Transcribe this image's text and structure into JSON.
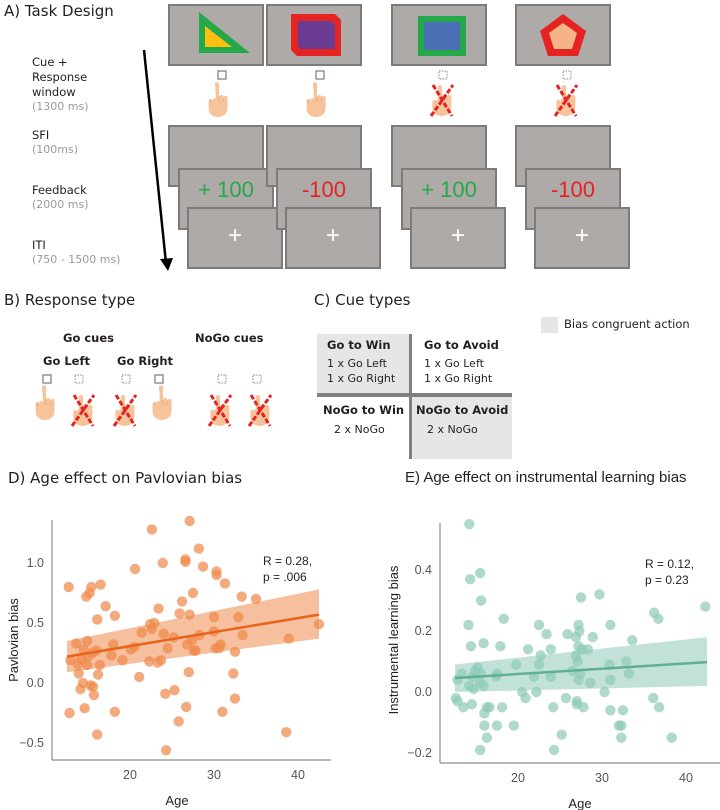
{
  "panelA": {
    "title": "A) Task Design",
    "stages": [
      {
        "label": "Cue +\nResponse\nwindow",
        "duration": "(1300 ms)"
      },
      {
        "label": "SFI",
        "duration": "(100ms)"
      },
      {
        "label": "Feedback",
        "duration": "(2000 ms)"
      },
      {
        "label": "ITI",
        "duration": "(750 - 1500 ms)"
      }
    ],
    "trials": [
      {
        "cue_shape": "triangle",
        "outer_color": "#25a84a",
        "inner_color": "#fdc010",
        "response": "go",
        "feedback": "+ 100",
        "feedback_color": "#27a84a",
        "fixation": "+"
      },
      {
        "cue_shape": "octagon",
        "outer_color": "#e52322",
        "inner_color": "#6a3c91",
        "response": "go",
        "feedback": "-100",
        "feedback_color": "#e52322",
        "fixation": "+"
      },
      {
        "cue_shape": "square",
        "outer_color": "#25a84a",
        "inner_color": "#4a6fb5",
        "response": "nogo",
        "feedback": "+ 100",
        "feedback_color": "#27a84a",
        "fixation": "+"
      },
      {
        "cue_shape": "pentagon",
        "outer_color": "#e52322",
        "inner_color": "#f5b486",
        "response": "nogo",
        "feedback": "-100",
        "feedback_color": "#e52322",
        "fixation": "+"
      }
    ]
  },
  "panelB": {
    "title": "B) Response type",
    "go_heading": "Go cues",
    "nogo_heading": "NoGo cues",
    "go_left": "Go Left",
    "go_right": "Go Right"
  },
  "panelC": {
    "title": "C)  Cue types",
    "legend": "Bias congruent action",
    "legend_color": "#e6e6e6",
    "cells": [
      {
        "heading": "Go to Win",
        "lines": [
          "1 x Go Left",
          "1 x Go Right"
        ],
        "congruent": true
      },
      {
        "heading": "Go to Avoid",
        "lines": [
          "1 x Go Left",
          "1 x Go Right"
        ],
        "congruent": false
      },
      {
        "heading": "NoGo to Win",
        "lines": [
          "2 x NoGo"
        ],
        "congruent": false
      },
      {
        "heading": "NoGo to Avoid",
        "lines": [
          "2 x NoGo"
        ],
        "congruent": true
      }
    ]
  },
  "chart_data": [
    {
      "id": "D",
      "type": "scatter",
      "title": "D)  Age effect on Pavlovian bias",
      "xlabel": "Age",
      "ylabel": "Pavlovian bias",
      "xlim": [
        11,
        44
      ],
      "ylim": [
        -0.65,
        1.45
      ],
      "xticks": [
        20,
        30,
        40
      ],
      "yticks": [
        -0.5,
        0.0,
        0.5,
        1.0
      ],
      "ytick_labels": [
        "−0.5",
        "0.0",
        "0.5",
        "1.0"
      ],
      "annotation": [
        "R = 0.28,",
        "p = .006"
      ],
      "color": "#ef8a4c",
      "line_color": "#e8631c",
      "fit": {
        "x": [
          12.5,
          42.5
        ],
        "y": [
          0.22,
          0.57
        ]
      },
      "ci": {
        "x": [
          12.5,
          42.5
        ],
        "lower": [
          0.09,
          0.37
        ],
        "upper": [
          0.35,
          0.78
        ]
      },
      "grid": false,
      "points": [
        [
          12.7,
          0.8
        ],
        [
          14.8,
          0.72
        ],
        [
          15.2,
          0.75
        ],
        [
          15.4,
          0.8
        ],
        [
          16.5,
          0.82
        ],
        [
          17.1,
          0.64
        ],
        [
          16.1,
          0.53
        ],
        [
          18.2,
          0.56
        ],
        [
          20.6,
          0.95
        ],
        [
          22.6,
          1.28
        ],
        [
          23.9,
          1.0
        ],
        [
          27.1,
          1.35
        ],
        [
          26.6,
          1.03
        ],
        [
          26.6,
          1.01
        ],
        [
          28.2,
          1.12
        ],
        [
          28.7,
          0.97
        ],
        [
          30.3,
          0.93
        ],
        [
          30.3,
          0.9
        ],
        [
          31.3,
          0.83
        ],
        [
          26.2,
          0.68
        ],
        [
          27.5,
          0.75
        ],
        [
          23.4,
          0.62
        ],
        [
          22.4,
          0.49
        ],
        [
          22.9,
          0.5
        ],
        [
          25.9,
          0.58
        ],
        [
          27.1,
          0.57
        ],
        [
          30.0,
          0.55
        ],
        [
          33.3,
          0.72
        ],
        [
          35.0,
          0.7
        ],
        [
          32.9,
          0.55
        ],
        [
          42.5,
          0.49
        ],
        [
          13.6,
          0.33
        ],
        [
          14.9,
          0.35
        ],
        [
          14.5,
          0.28
        ],
        [
          15.5,
          0.25
        ],
        [
          15.0,
          0.22
        ],
        [
          16.0,
          0.27
        ],
        [
          14.2,
          0.2
        ],
        [
          12.9,
          0.19
        ],
        [
          13.8,
          0.16
        ],
        [
          14.9,
          0.15
        ],
        [
          16.4,
          0.15
        ],
        [
          16.2,
          0.07
        ],
        [
          13.9,
          0.08
        ],
        [
          18.0,
          0.32
        ],
        [
          17.8,
          0.23
        ],
        [
          19.1,
          0.19
        ],
        [
          20.1,
          0.28
        ],
        [
          20.5,
          0.3
        ],
        [
          21.4,
          0.42
        ],
        [
          22.6,
          0.45
        ],
        [
          24.0,
          0.41
        ],
        [
          24.5,
          0.29
        ],
        [
          25.2,
          0.38
        ],
        [
          22.3,
          0.18
        ],
        [
          23.3,
          0.17
        ],
        [
          23.7,
          0.19
        ],
        [
          26.8,
          0.32
        ],
        [
          27.4,
          0.36
        ],
        [
          27.8,
          0.27
        ],
        [
          28.3,
          0.4
        ],
        [
          30.0,
          0.43
        ],
        [
          30.8,
          0.32
        ],
        [
          30.6,
          0.29
        ],
        [
          30.2,
          0.29
        ],
        [
          32.5,
          0.26
        ],
        [
          33.4,
          0.4
        ],
        [
          38.9,
          0.37
        ],
        [
          27.6,
          0.27
        ],
        [
          14.4,
          0.0
        ],
        [
          14.1,
          -0.05
        ],
        [
          15.3,
          -0.02
        ],
        [
          15.6,
          -0.03
        ],
        [
          15.7,
          -0.1
        ],
        [
          21.1,
          0.05
        ],
        [
          27.0,
          0.09
        ],
        [
          32.3,
          0.08
        ],
        [
          12.8,
          -0.25
        ],
        [
          14.6,
          -0.21
        ],
        [
          18.2,
          -0.24
        ],
        [
          16.1,
          -0.43
        ],
        [
          24.2,
          -0.09
        ],
        [
          25.3,
          -0.06
        ],
        [
          26.7,
          -0.2
        ],
        [
          25.8,
          -0.32
        ],
        [
          31.0,
          -0.24
        ],
        [
          32.5,
          -0.13
        ],
        [
          24.3,
          -0.56
        ],
        [
          38.6,
          -0.41
        ]
      ]
    },
    {
      "id": "E",
      "type": "scatter",
      "title": "E)  Age effect on instrumental learning bias",
      "xlabel": "Age",
      "ylabel": "Instrumental learning bias",
      "xlim": [
        11,
        44
      ],
      "ylim": [
        -0.24,
        0.58
      ],
      "xticks": [
        20,
        30,
        40
      ],
      "yticks": [
        -0.2,
        0.0,
        0.2,
        0.4
      ],
      "ytick_labels": [
        "−0.2",
        "0.0",
        "0.2",
        "0.4"
      ],
      "annotation": [
        "R = 0.12,",
        "p = 0.23"
      ],
      "color": "#8fcbb9",
      "line_color": "#5fae95",
      "fit": {
        "x": [
          12.5,
          42.5
        ],
        "y": [
          0.046,
          0.098
        ]
      },
      "ci": {
        "x": [
          12.5,
          42.5
        ],
        "lower": [
          0.0,
          0.02
        ],
        "upper": [
          0.09,
          0.18
        ]
      },
      "grid": false,
      "points": [
        [
          14.2,
          0.55
        ],
        [
          14.3,
          0.37
        ],
        [
          15.5,
          0.39
        ],
        [
          15.6,
          0.3
        ],
        [
          14.1,
          0.22
        ],
        [
          18.3,
          0.24
        ],
        [
          22.5,
          0.22
        ],
        [
          27.2,
          0.22
        ],
        [
          27.3,
          0.2
        ],
        [
          27.5,
          0.31
        ],
        [
          29.7,
          0.32
        ],
        [
          36.2,
          0.26
        ],
        [
          36.7,
          0.24
        ],
        [
          42.3,
          0.28
        ],
        [
          31.0,
          0.22
        ],
        [
          23.4,
          0.19
        ],
        [
          25.9,
          0.19
        ],
        [
          26.9,
          0.18
        ],
        [
          28.9,
          0.18
        ],
        [
          33.6,
          0.17
        ],
        [
          14.4,
          0.15
        ],
        [
          15.9,
          0.16
        ],
        [
          17.9,
          0.15
        ],
        [
          21.2,
          0.14
        ],
        [
          23.9,
          0.14
        ],
        [
          27.2,
          0.15
        ],
        [
          27.6,
          0.14
        ],
        [
          28.3,
          0.14
        ],
        [
          26.9,
          0.12
        ],
        [
          27.1,
          0.1
        ],
        [
          22.7,
          0.12
        ],
        [
          32.9,
          0.1
        ],
        [
          12.8,
          0.04
        ],
        [
          13.3,
          0.06
        ],
        [
          14.6,
          0.05
        ],
        [
          14.9,
          0.07
        ],
        [
          15.2,
          0.08
        ],
        [
          15.6,
          0.06
        ],
        [
          14.2,
          0.02
        ],
        [
          14.7,
          0.01
        ],
        [
          15.5,
          0.03
        ],
        [
          15.9,
          0.02
        ],
        [
          17.4,
          0.05
        ],
        [
          17.5,
          0.06
        ],
        [
          19.8,
          0.09
        ],
        [
          21.9,
          0.05
        ],
        [
          22.5,
          0.09
        ],
        [
          23.9,
          0.05
        ],
        [
          26.5,
          0.07
        ],
        [
          27.2,
          0.04
        ],
        [
          27.4,
          0.06
        ],
        [
          30.9,
          0.09
        ],
        [
          31.0,
          0.04
        ],
        [
          33.2,
          0.06
        ],
        [
          28.6,
          0.03
        ],
        [
          12.6,
          -0.02
        ],
        [
          12.8,
          -0.03
        ],
        [
          13.5,
          -0.05
        ],
        [
          14.5,
          -0.04
        ],
        [
          16.0,
          -0.07
        ],
        [
          16.3,
          -0.05
        ],
        [
          16.6,
          -0.05
        ],
        [
          18.1,
          -0.05
        ],
        [
          20.5,
          0.0
        ],
        [
          20.9,
          -0.02
        ],
        [
          22.2,
          0.0
        ],
        [
          24.2,
          -0.05
        ],
        [
          25.7,
          -0.02
        ],
        [
          27.0,
          -0.04
        ],
        [
          27.0,
          -0.03
        ],
        [
          27.8,
          -0.05
        ],
        [
          30.3,
          0.0
        ],
        [
          31.0,
          -0.06
        ],
        [
          32.5,
          -0.06
        ],
        [
          36.1,
          -0.02
        ],
        [
          36.8,
          -0.05
        ],
        [
          16.0,
          -0.11
        ],
        [
          17.5,
          -0.11
        ],
        [
          19.5,
          -0.11
        ],
        [
          16.3,
          -0.15
        ],
        [
          15.5,
          -0.19
        ],
        [
          24.3,
          -0.19
        ],
        [
          25.2,
          -0.14
        ],
        [
          32.0,
          -0.11
        ],
        [
          32.3,
          -0.11
        ],
        [
          32.3,
          -0.15
        ],
        [
          38.3,
          -0.15
        ]
      ]
    }
  ]
}
